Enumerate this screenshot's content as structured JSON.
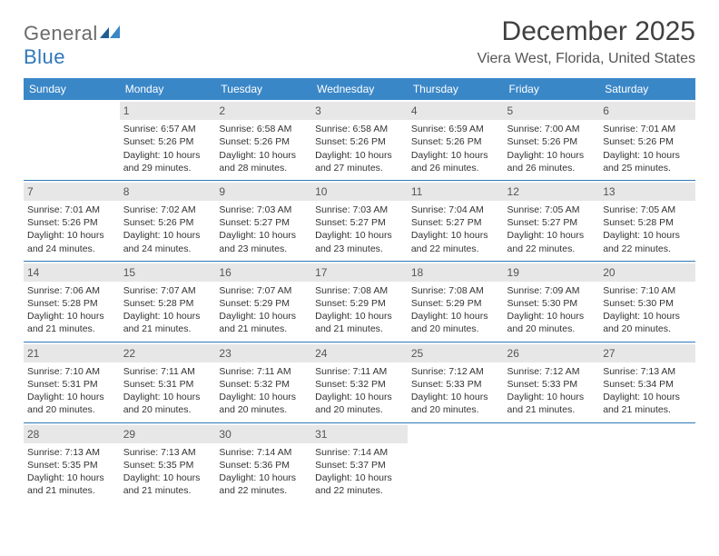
{
  "logo": {
    "word1": "General",
    "word2": "Blue"
  },
  "title": "December 2025",
  "location": "Viera West, Florida, United States",
  "colors": {
    "header_bg": "#3a87c8",
    "divider": "#2f78b7",
    "daynum_bg": "#e7e7e7",
    "text": "#333333",
    "logo_gray": "#6b6b6b",
    "logo_blue": "#2f78b7"
  },
  "day_headers": [
    "Sunday",
    "Monday",
    "Tuesday",
    "Wednesday",
    "Thursday",
    "Friday",
    "Saturday"
  ],
  "days": {
    "1": {
      "sunrise": "6:57 AM",
      "sunset": "5:26 PM",
      "daylight": "10 hours and 29 minutes."
    },
    "2": {
      "sunrise": "6:58 AM",
      "sunset": "5:26 PM",
      "daylight": "10 hours and 28 minutes."
    },
    "3": {
      "sunrise": "6:58 AM",
      "sunset": "5:26 PM",
      "daylight": "10 hours and 27 minutes."
    },
    "4": {
      "sunrise": "6:59 AM",
      "sunset": "5:26 PM",
      "daylight": "10 hours and 26 minutes."
    },
    "5": {
      "sunrise": "7:00 AM",
      "sunset": "5:26 PM",
      "daylight": "10 hours and 26 minutes."
    },
    "6": {
      "sunrise": "7:01 AM",
      "sunset": "5:26 PM",
      "daylight": "10 hours and 25 minutes."
    },
    "7": {
      "sunrise": "7:01 AM",
      "sunset": "5:26 PM",
      "daylight": "10 hours and 24 minutes."
    },
    "8": {
      "sunrise": "7:02 AM",
      "sunset": "5:26 PM",
      "daylight": "10 hours and 24 minutes."
    },
    "9": {
      "sunrise": "7:03 AM",
      "sunset": "5:27 PM",
      "daylight": "10 hours and 23 minutes."
    },
    "10": {
      "sunrise": "7:03 AM",
      "sunset": "5:27 PM",
      "daylight": "10 hours and 23 minutes."
    },
    "11": {
      "sunrise": "7:04 AM",
      "sunset": "5:27 PM",
      "daylight": "10 hours and 22 minutes."
    },
    "12": {
      "sunrise": "7:05 AM",
      "sunset": "5:27 PM",
      "daylight": "10 hours and 22 minutes."
    },
    "13": {
      "sunrise": "7:05 AM",
      "sunset": "5:28 PM",
      "daylight": "10 hours and 22 minutes."
    },
    "14": {
      "sunrise": "7:06 AM",
      "sunset": "5:28 PM",
      "daylight": "10 hours and 21 minutes."
    },
    "15": {
      "sunrise": "7:07 AM",
      "sunset": "5:28 PM",
      "daylight": "10 hours and 21 minutes."
    },
    "16": {
      "sunrise": "7:07 AM",
      "sunset": "5:29 PM",
      "daylight": "10 hours and 21 minutes."
    },
    "17": {
      "sunrise": "7:08 AM",
      "sunset": "5:29 PM",
      "daylight": "10 hours and 21 minutes."
    },
    "18": {
      "sunrise": "7:08 AM",
      "sunset": "5:29 PM",
      "daylight": "10 hours and 20 minutes."
    },
    "19": {
      "sunrise": "7:09 AM",
      "sunset": "5:30 PM",
      "daylight": "10 hours and 20 minutes."
    },
    "20": {
      "sunrise": "7:10 AM",
      "sunset": "5:30 PM",
      "daylight": "10 hours and 20 minutes."
    },
    "21": {
      "sunrise": "7:10 AM",
      "sunset": "5:31 PM",
      "daylight": "10 hours and 20 minutes."
    },
    "22": {
      "sunrise": "7:11 AM",
      "sunset": "5:31 PM",
      "daylight": "10 hours and 20 minutes."
    },
    "23": {
      "sunrise": "7:11 AM",
      "sunset": "5:32 PM",
      "daylight": "10 hours and 20 minutes."
    },
    "24": {
      "sunrise": "7:11 AM",
      "sunset": "5:32 PM",
      "daylight": "10 hours and 20 minutes."
    },
    "25": {
      "sunrise": "7:12 AM",
      "sunset": "5:33 PM",
      "daylight": "10 hours and 20 minutes."
    },
    "26": {
      "sunrise": "7:12 AM",
      "sunset": "5:33 PM",
      "daylight": "10 hours and 21 minutes."
    },
    "27": {
      "sunrise": "7:13 AM",
      "sunset": "5:34 PM",
      "daylight": "10 hours and 21 minutes."
    },
    "28": {
      "sunrise": "7:13 AM",
      "sunset": "5:35 PM",
      "daylight": "10 hours and 21 minutes."
    },
    "29": {
      "sunrise": "7:13 AM",
      "sunset": "5:35 PM",
      "daylight": "10 hours and 21 minutes."
    },
    "30": {
      "sunrise": "7:14 AM",
      "sunset": "5:36 PM",
      "daylight": "10 hours and 22 minutes."
    },
    "31": {
      "sunrise": "7:14 AM",
      "sunset": "5:37 PM",
      "daylight": "10 hours and 22 minutes."
    }
  },
  "weeks": [
    [
      null,
      1,
      2,
      3,
      4,
      5,
      6
    ],
    [
      7,
      8,
      9,
      10,
      11,
      12,
      13
    ],
    [
      14,
      15,
      16,
      17,
      18,
      19,
      20
    ],
    [
      21,
      22,
      23,
      24,
      25,
      26,
      27
    ],
    [
      28,
      29,
      30,
      31,
      null,
      null,
      null
    ]
  ],
  "labels": {
    "sunrise": "Sunrise: ",
    "sunset": "Sunset: ",
    "daylight": "Daylight: "
  }
}
